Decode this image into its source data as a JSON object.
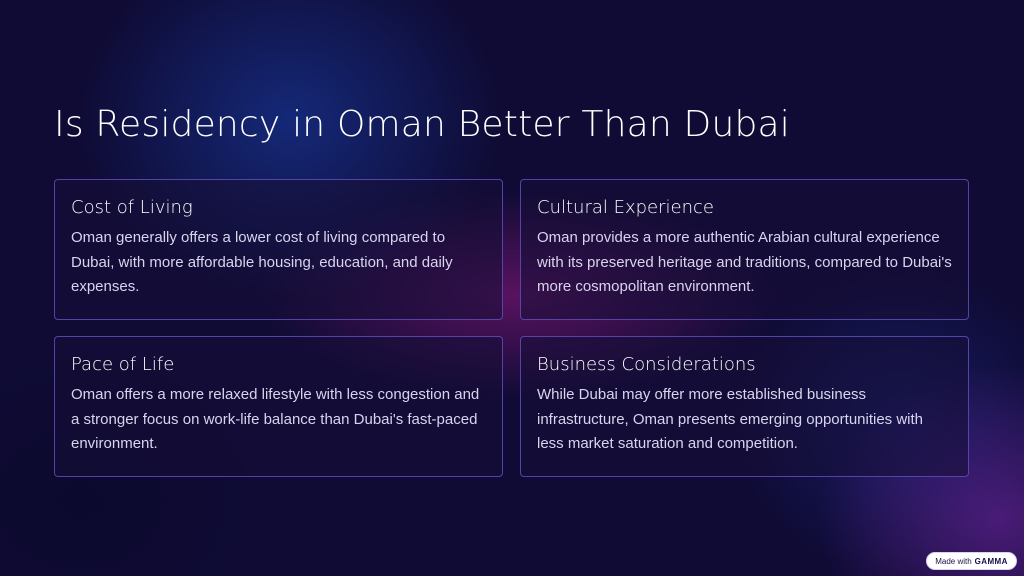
{
  "slide": {
    "title": "Is Residency in Oman Better Than Dubai"
  },
  "cards": [
    {
      "title": "Cost of Living",
      "body": "Oman generally offers a lower cost of living compared to Dubai, with more affordable housing, education, and daily expenses."
    },
    {
      "title": "Cultural Experience",
      "body": "Oman provides a more authentic Arabian cultural experience with its preserved heritage and traditions, compared to Dubai's more cosmopolitan environment."
    },
    {
      "title": "Pace of Life",
      "body": "Oman offers a more relaxed lifestyle with less congestion and a stronger focus on work-life balance than Dubai's fast-paced environment."
    },
    {
      "title": "Business Considerations",
      "body": "While Dubai may offer more established business infrastructure, Oman presents emerging opportunities with less market saturation and competition."
    }
  ],
  "badge": {
    "prefix": "Made with",
    "brand": "GAMMA"
  }
}
